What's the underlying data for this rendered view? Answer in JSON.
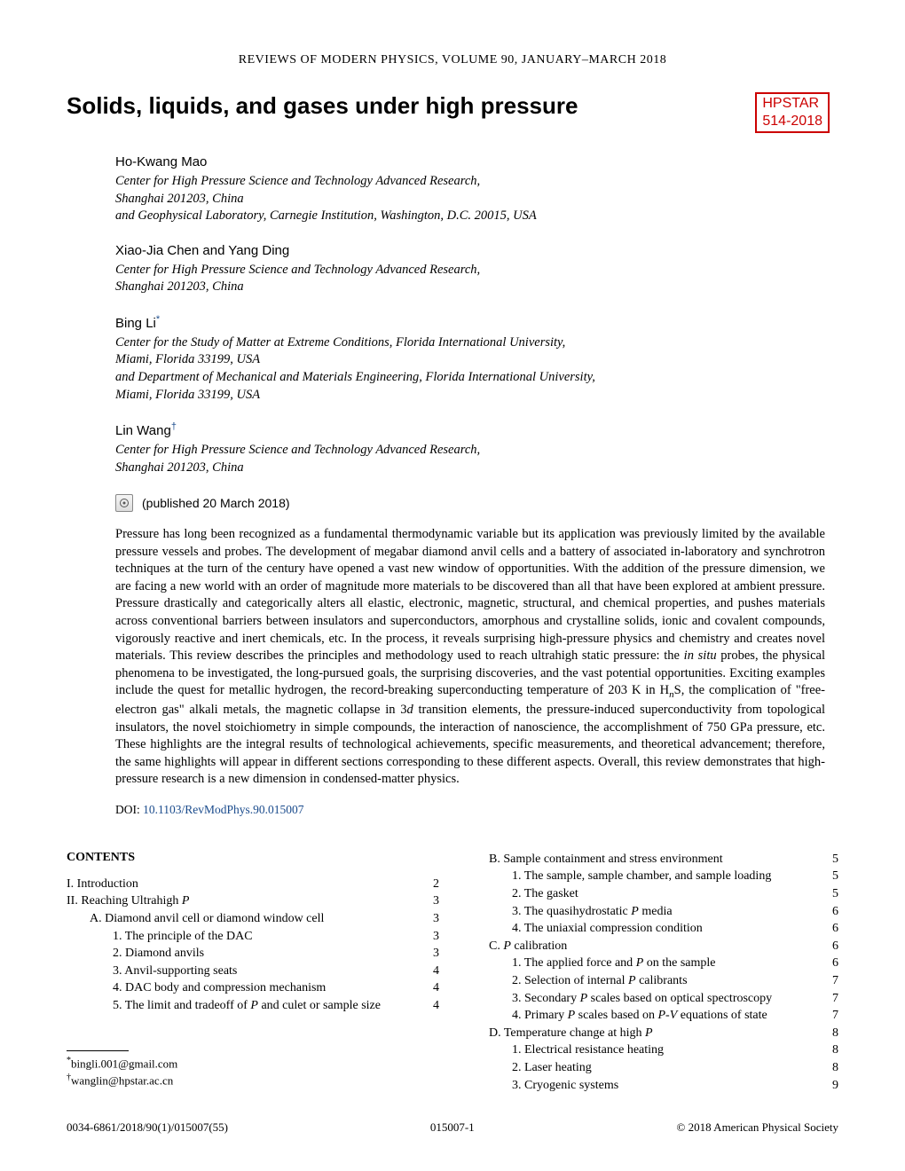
{
  "journal_header": "REVIEWS OF MODERN PHYSICS, VOLUME 90,  JANUARY–MARCH 2018",
  "article_title": "Solids, liquids, and gases under high pressure",
  "badge": {
    "line1": "HPSTAR",
    "line2": "514-2018"
  },
  "authors": [
    {
      "name": "Ho-Kwang Mao",
      "sup": "",
      "affiliations": [
        "Center for High Pressure Science and Technology Advanced Research,",
        "Shanghai 201203, China",
        "and Geophysical Laboratory, Carnegie Institution, Washington, D.C. 20015, USA"
      ]
    },
    {
      "name": "Xiao-Jia Chen and Yang Ding",
      "sup": "",
      "affiliations": [
        "Center for High Pressure Science and Technology Advanced Research,",
        "Shanghai 201203, China"
      ]
    },
    {
      "name": "Bing Li",
      "sup": "*",
      "affiliations": [
        "Center for the Study of Matter at Extreme Conditions, Florida International University,",
        "Miami, Florida 33199, USA",
        "and Department of Mechanical and Materials Engineering, Florida International University,",
        "Miami, Florida 33199, USA"
      ]
    },
    {
      "name": "Lin Wang",
      "sup": "†",
      "affiliations": [
        "Center for High Pressure Science and Technology Advanced Research,",
        "Shanghai 201203, China"
      ]
    }
  ],
  "pub_date": "(published 20 March 2018)",
  "abstract": "Pressure has long been recognized as a fundamental thermodynamic variable but its application was previously limited by the available pressure vessels and probes. The development of megabar diamond anvil cells and a battery of associated in-laboratory and synchrotron techniques at the turn of the century have opened a vast new window of opportunities. With the addition of the pressure dimension, we are facing a new world with an order of magnitude more materials to be discovered than all that have been explored at ambient pressure. Pressure drastically and categorically alters all elastic, electronic, magnetic, structural, and chemical properties, and pushes materials across conventional barriers between insulators and superconductors, amorphous and crystalline solids, ionic and covalent compounds, vigorously reactive and inert chemicals, etc. In the process, it reveals surprising high-pressure physics and chemistry and creates novel materials. This review describes the principles and methodology used to reach ultrahigh static pressure: the in situ probes, the physical phenomena to be investigated, the long-pursued goals, the surprising discoveries, and the vast potential opportunities. Exciting examples include the quest for metallic hydrogen, the record-breaking superconducting temperature of 203 K in HnS, the complication of \"free-electron gas\" alkali metals, the magnetic collapse in 3d transition elements, the pressure-induced superconductivity from topological insulators, the novel stoichiometry in simple compounds, the interaction of nanoscience, the accomplishment of 750 GPa pressure, etc. These highlights are the integral results of technological achievements, specific measurements, and theoretical advancement; therefore, the same highlights will appear in different sections corresponding to these different aspects. Overall, this review demonstrates that high-pressure research is a new dimension in condensed-matter physics.",
  "doi_prefix": "DOI: ",
  "doi": "10.1103/RevModPhys.90.015007",
  "contents_heading": "CONTENTS",
  "toc_left": [
    {
      "label": "I. Introduction",
      "page": "2",
      "level": 0
    },
    {
      "label_html": "II. Reaching Ultrahigh <span class='italic-var'>P</span>",
      "page": "3",
      "level": 0
    },
    {
      "label": "A. Diamond anvil cell or diamond window cell",
      "page": "3",
      "level": 1
    },
    {
      "label": "1. The principle of the DAC",
      "page": "3",
      "level": 2
    },
    {
      "label": "2. Diamond anvils",
      "page": "3",
      "level": 2
    },
    {
      "label": "3. Anvil-supporting seats",
      "page": "4",
      "level": 2
    },
    {
      "label": "4. DAC body and compression mechanism",
      "page": "4",
      "level": 2
    },
    {
      "label_html": "5. The limit and tradeoff of <span class='italic-var'>P</span> and culet or sample size",
      "page": "4",
      "level": 2
    }
  ],
  "toc_right": [
    {
      "label": "B. Sample containment and stress environment",
      "page": "5",
      "level": 1
    },
    {
      "label": "1. The sample, sample chamber, and sample loading",
      "page": "5",
      "level": 2
    },
    {
      "label": "2. The gasket",
      "page": "5",
      "level": 2
    },
    {
      "label_html": "3. The quasihydrostatic <span class='italic-var'>P</span> media",
      "page": "6",
      "level": 2
    },
    {
      "label": "4. The uniaxial compression condition",
      "page": "6",
      "level": 2
    },
    {
      "label_html": "C. <span class='italic-var'>P</span> calibration",
      "page": "6",
      "level": 1
    },
    {
      "label_html": "1. The applied force and <span class='italic-var'>P</span> on the sample",
      "page": "6",
      "level": 2
    },
    {
      "label_html": "2. Selection of internal <span class='italic-var'>P</span> calibrants",
      "page": "7",
      "level": 2
    },
    {
      "label_html": "3. Secondary <span class='italic-var'>P</span> scales based on optical spectroscopy",
      "page": "7",
      "level": 2
    },
    {
      "label_html": "4. Primary <span class='italic-var'>P</span> scales based on <span class='italic-var'>P</span>-<span class='italic-var'>V</span> equations of state",
      "page": "7",
      "level": 2
    },
    {
      "label_html": "D. Temperature change at high <span class='italic-var'>P</span>",
      "page": "8",
      "level": 1
    },
    {
      "label": "1. Electrical resistance heating",
      "page": "8",
      "level": 2
    },
    {
      "label": "2. Laser heating",
      "page": "8",
      "level": 2
    },
    {
      "label": "3. Cryogenic systems",
      "page": "9",
      "level": 2
    }
  ],
  "footnotes": [
    {
      "sym": "*",
      "text": "bingli.001@gmail.com"
    },
    {
      "sym": "†",
      "text": "wanglin@hpstar.ac.cn"
    }
  ],
  "footer": {
    "left": "0034-6861/2018/90(1)/015007(55)",
    "center": "015007-1",
    "right": "© 2018 American Physical Society"
  },
  "colors": {
    "badge_border": "#cc0000",
    "link": "#1a4b8c"
  }
}
